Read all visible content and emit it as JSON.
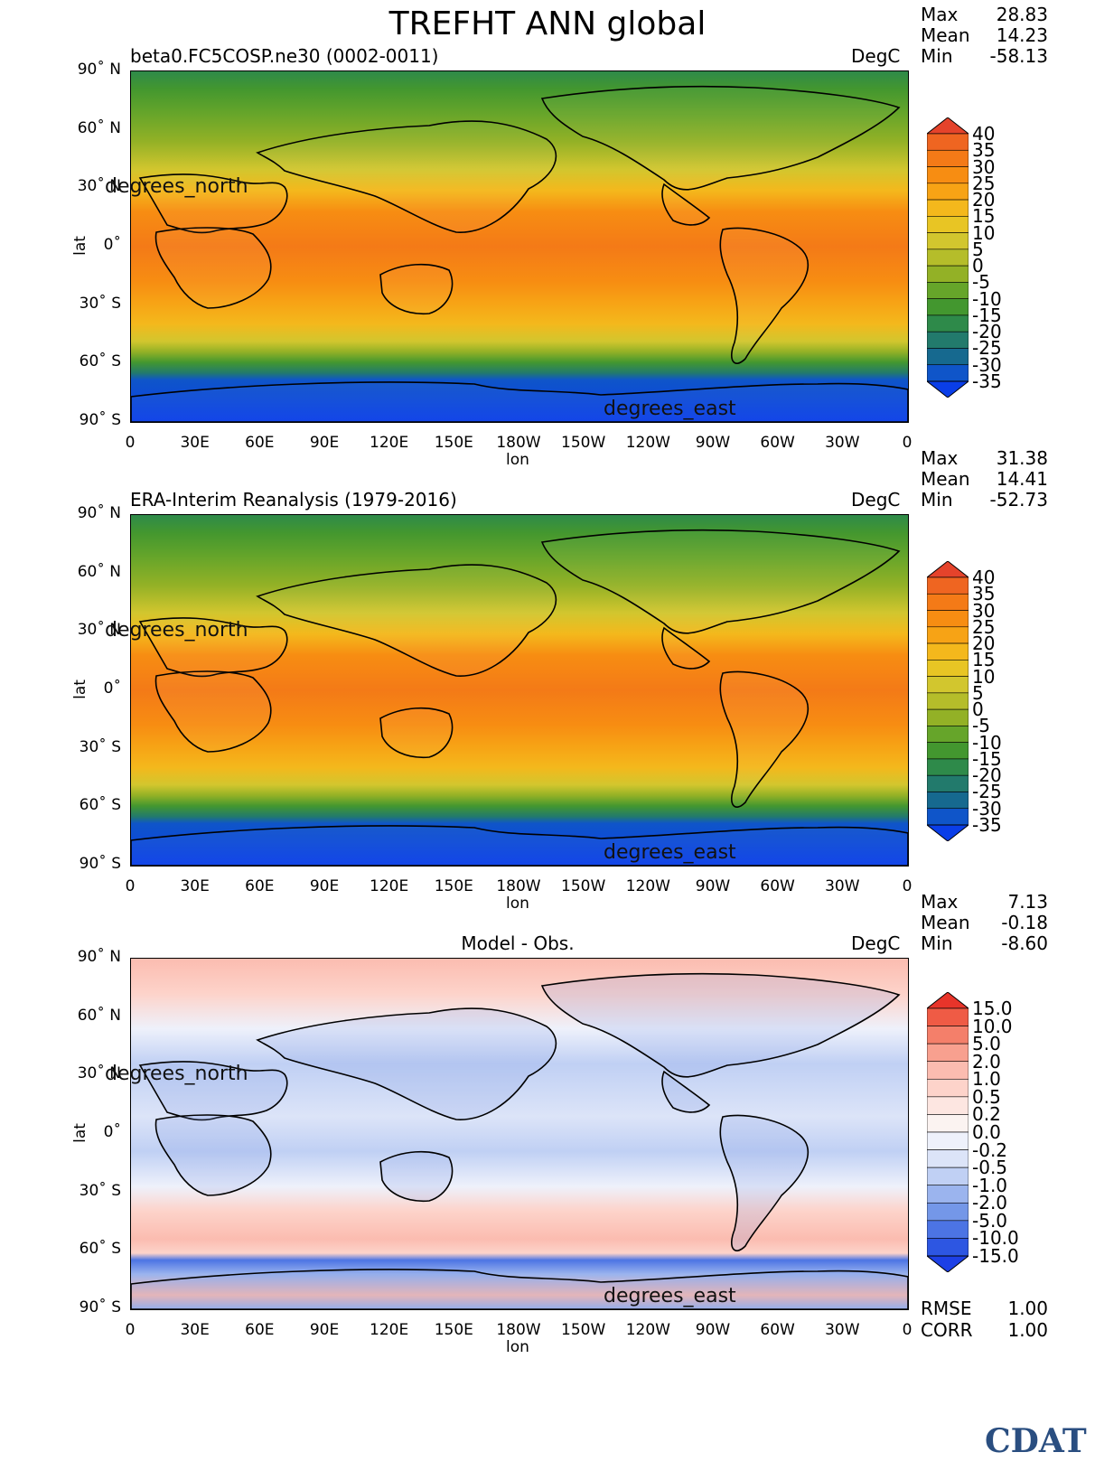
{
  "title": "TREFHT ANN global",
  "lat_axis_title": "lat",
  "lon_axis_title": "lon",
  "lat_dim_label": "degrees_north",
  "lon_dim_label": "degrees_east",
  "lat_ticks": [
    "90˚ N",
    "60˚ N",
    "30˚ N",
    "0˚",
    "30˚ S",
    "60˚ S",
    "90˚ S"
  ],
  "lon_ticks": [
    "0",
    "30E",
    "60E",
    "90E",
    "120E",
    "150E",
    "180W",
    "150W",
    "120W",
    "90W",
    "60W",
    "30W",
    "0"
  ],
  "panels": [
    {
      "title": "beta0.FC5COSP.ne30 (0002-0011)",
      "units": "DegC",
      "stats": [
        {
          "label": "Max",
          "value": "28.83"
        },
        {
          "label": "Mean",
          "value": "14.23"
        },
        {
          "label": "Min",
          "value": "-58.13"
        }
      ]
    },
    {
      "title": "ERA-Interim Reanalysis (1979-2016)",
      "units": "DegC",
      "stats": [
        {
          "label": "Max",
          "value": "31.38"
        },
        {
          "label": "Mean",
          "value": "14.41"
        },
        {
          "label": "Min",
          "value": "-52.73"
        }
      ]
    },
    {
      "title": "Model - Obs.",
      "units": "DegC",
      "stats": [
        {
          "label": "Max",
          "value": "7.13"
        },
        {
          "label": "Mean",
          "value": "-0.18"
        },
        {
          "label": "Min",
          "value": "-8.60"
        }
      ],
      "metrics": [
        {
          "label": "RMSE",
          "value": "1.00"
        },
        {
          "label": "CORR",
          "value": "1.00"
        }
      ]
    }
  ],
  "colorbar_abs": {
    "labels": [
      "40",
      "35",
      "30",
      "25",
      "20",
      "15",
      "10",
      "5",
      "0",
      "-5",
      "-10",
      "-15",
      "-20",
      "-25",
      "-30",
      "-35"
    ],
    "colors": [
      "#e5432b",
      "#ef6521",
      "#f47a17",
      "#f78d12",
      "#f7a315",
      "#f4b81c",
      "#e8c524",
      "#d2c62e",
      "#b5bd2a",
      "#93b126",
      "#66a52a",
      "#43972f",
      "#2e8a4a",
      "#227a6c",
      "#16698f",
      "#0f55c9",
      "#0a3ee8"
    ]
  },
  "colorbar_diff": {
    "labels": [
      "15.0",
      "10.0",
      "5.0",
      "2.0",
      "1.0",
      "0.5",
      "0.2",
      "0.0",
      "-0.2",
      "-0.5",
      "-1.0",
      "-2.0",
      "-5.0",
      "-10.0",
      "-15.0"
    ],
    "colors": [
      "#e8342a",
      "#ef5b45",
      "#f47f6a",
      "#f8a08f",
      "#fbbcb0",
      "#fdd3ca",
      "#fde6e1",
      "#fbf3f1",
      "#eef1fb",
      "#dce4f8",
      "#c0d0f4",
      "#9bb4ee",
      "#7497e8",
      "#4c74e4",
      "#2d56e2",
      "#1d40e6"
    ]
  },
  "logo_text": "CDAT"
}
